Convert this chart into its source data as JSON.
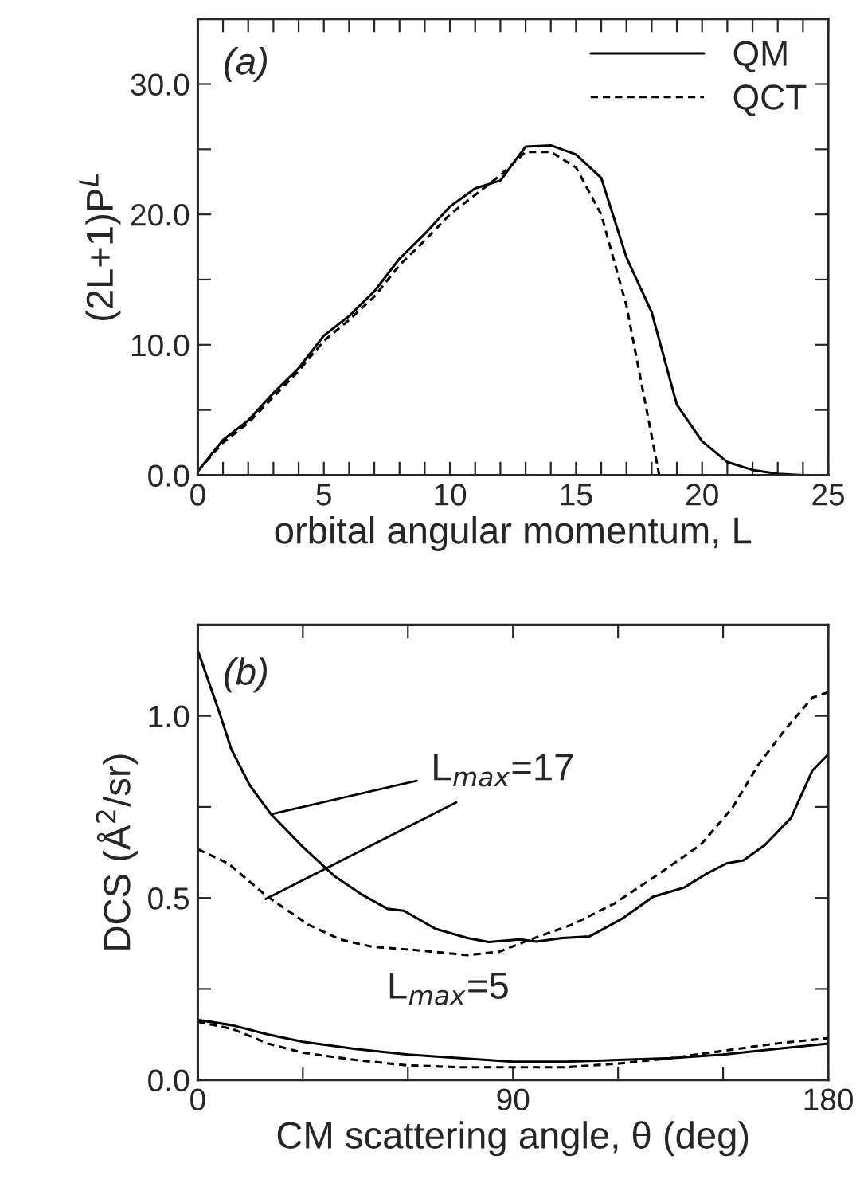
{
  "chart_data": [
    {
      "type": "line",
      "xlabel": "orbital angular momentum, L",
      "ylabel": "(2L+1)P$^{L}$",
      "annotations": [
        "(a)"
      ],
      "legend": "top right",
      "grid": false,
      "xlim": [
        0,
        25
      ],
      "ylim": [
        0,
        35
      ],
      "xticks": [
        0,
        {
          "value": 1,
          "label": null
        },
        {
          "value": 2,
          "label": null
        },
        {
          "value": 3,
          "label": null
        },
        {
          "value": 4,
          "label": null
        },
        5,
        {
          "value": 6,
          "label": null
        },
        {
          "value": 7,
          "label": null
        },
        {
          "value": 8,
          "label": null
        },
        {
          "value": 9,
          "label": null
        },
        10,
        {
          "value": 11,
          "label": null
        },
        {
          "value": 12,
          "label": null
        },
        {
          "value": 13,
          "label": null
        },
        {
          "value": 14,
          "label": null
        },
        15,
        {
          "value": 16,
          "label": null
        },
        {
          "value": 17,
          "label": null
        },
        {
          "value": 18,
          "label": null
        },
        {
          "value": 19,
          "label": null
        },
        20,
        {
          "value": 21,
          "label": null
        },
        {
          "value": 22,
          "label": null
        },
        {
          "value": 23,
          "label": null
        },
        {
          "value": 24,
          "label": null
        },
        25
      ],
      "yticks": [
        {
          "value": 0,
          "label": "0.0"
        },
        {
          "value": 5,
          "label": null
        },
        {
          "value": 10,
          "label": "10.0"
        },
        {
          "value": 15,
          "label": null
        },
        {
          "value": 20,
          "label": "20.0"
        },
        {
          "value": 25,
          "label": null
        },
        {
          "value": 30,
          "label": "30.0"
        }
      ],
      "series": [
        {
          "name": "QM",
          "color": "#000000",
          "line_style": "solid",
          "x": [
            0,
            1,
            2,
            3,
            4,
            5,
            6,
            7,
            8,
            9,
            10,
            11,
            12,
            13,
            14,
            15,
            16,
            17,
            18,
            19,
            20,
            21,
            22,
            23,
            24,
            25
          ],
          "values": [
            0.3,
            2.7,
            4.2,
            6.3,
            8.2,
            10.7,
            12.2,
            14.1,
            16.6,
            18.5,
            20.6,
            22.0,
            22.6,
            25.2,
            25.3,
            24.6,
            22.8,
            16.7,
            12.5,
            5.4,
            2.6,
            1.0,
            0.4,
            0.1,
            0,
            0
          ]
        },
        {
          "name": "QCT",
          "color": "#000000",
          "line_style": "dashed",
          "x": [
            0,
            1,
            2,
            3,
            4,
            5,
            6,
            7,
            8,
            9,
            10,
            11,
            12,
            13,
            14,
            15,
            16,
            17,
            18,
            18.3
          ],
          "values": [
            0.3,
            2.5,
            4.0,
            6.0,
            8.0,
            10.3,
            11.9,
            13.7,
            16.1,
            18.0,
            20.0,
            21.5,
            23.0,
            24.8,
            24.8,
            23.6,
            20.0,
            13.0,
            3.0,
            0
          ]
        }
      ]
    },
    {
      "type": "line",
      "xlabel": "CM scattering angle, θ (deg)",
      "ylabel": "DCS (Å$^{2}$/sr)",
      "grid": false,
      "legend": false,
      "annotations": [
        "(b)",
        {
          "text": "L$_{max}$=17",
          "x": 20.9,
          "y": 0.73
        },
        "L$_{max}$=5"
      ],
      "xlim": [
        0,
        180
      ],
      "ylim": [
        0,
        1.25
      ],
      "xticks": [
        0,
        {
          "value": 30,
          "label": null
        },
        {
          "value": 60,
          "label": null
        },
        90,
        {
          "value": 120,
          "label": null
        },
        {
          "value": 150,
          "label": null
        },
        180
      ],
      "yticks": [
        {
          "value": 0,
          "label": "0.0"
        },
        {
          "value": 0.25,
          "label": null
        },
        {
          "value": 0.5,
          "label": "0.5"
        },
        {
          "value": 0.75,
          "label": null
        },
        {
          "value": 1.0,
          "label": "1.0"
        }
      ],
      "series": [
        {
          "color": "#000000",
          "line_style": "solid",
          "x": [
            0,
            6.5,
            9.5,
            14.8,
            20.9,
            30,
            39,
            46.7,
            54.2,
            58.8,
            67.9,
            77,
            83,
            92,
            96.7,
            104,
            111.8,
            121,
            130,
            139,
            145,
            151,
            155.8,
            162,
            169.4,
            175.5,
            180
          ],
          "values": [
            1.18,
            1.0,
            0.91,
            0.81,
            0.73,
            0.64,
            0.56,
            0.51,
            0.47,
            0.465,
            0.415,
            0.39,
            0.379,
            0.386,
            0.38,
            0.39,
            0.394,
            0.442,
            0.503,
            0.529,
            0.565,
            0.595,
            0.603,
            0.646,
            0.72,
            0.85,
            0.894
          ]
        },
        {
          "color": "#000000",
          "line_style": "dashed",
          "x": [
            0,
            8.8,
            19.4,
            31.5,
            40.6,
            49.7,
            61.8,
            77,
            86,
            95,
            107,
            119,
            131.5,
            143.6,
            152.7,
            160,
            168,
            175.5,
            180
          ],
          "values": [
            0.634,
            0.594,
            0.507,
            0.427,
            0.386,
            0.366,
            0.357,
            0.343,
            0.352,
            0.386,
            0.427,
            0.485,
            0.565,
            0.646,
            0.748,
            0.865,
            0.966,
            1.05,
            1.065
          ]
        },
        {
          "color": "#000000",
          "line_style": "solid",
          "x": [
            0,
            10,
            20,
            30,
            45,
            60,
            75,
            90,
            105,
            120,
            135,
            150,
            165,
            180
          ],
          "values": [
            0.165,
            0.15,
            0.125,
            0.105,
            0.085,
            0.07,
            0.06,
            0.05,
            0.05,
            0.055,
            0.06,
            0.07,
            0.085,
            0.1
          ]
        },
        {
          "color": "#000000",
          "line_style": "dashed",
          "x": [
            0,
            10,
            20,
            30,
            45,
            60,
            75,
            90,
            105,
            120,
            135,
            150,
            165,
            180
          ],
          "values": [
            0.16,
            0.14,
            0.1,
            0.075,
            0.055,
            0.04,
            0.035,
            0.035,
            0.035,
            0.045,
            0.06,
            0.08,
            0.1,
            0.115
          ]
        }
      ]
    }
  ]
}
